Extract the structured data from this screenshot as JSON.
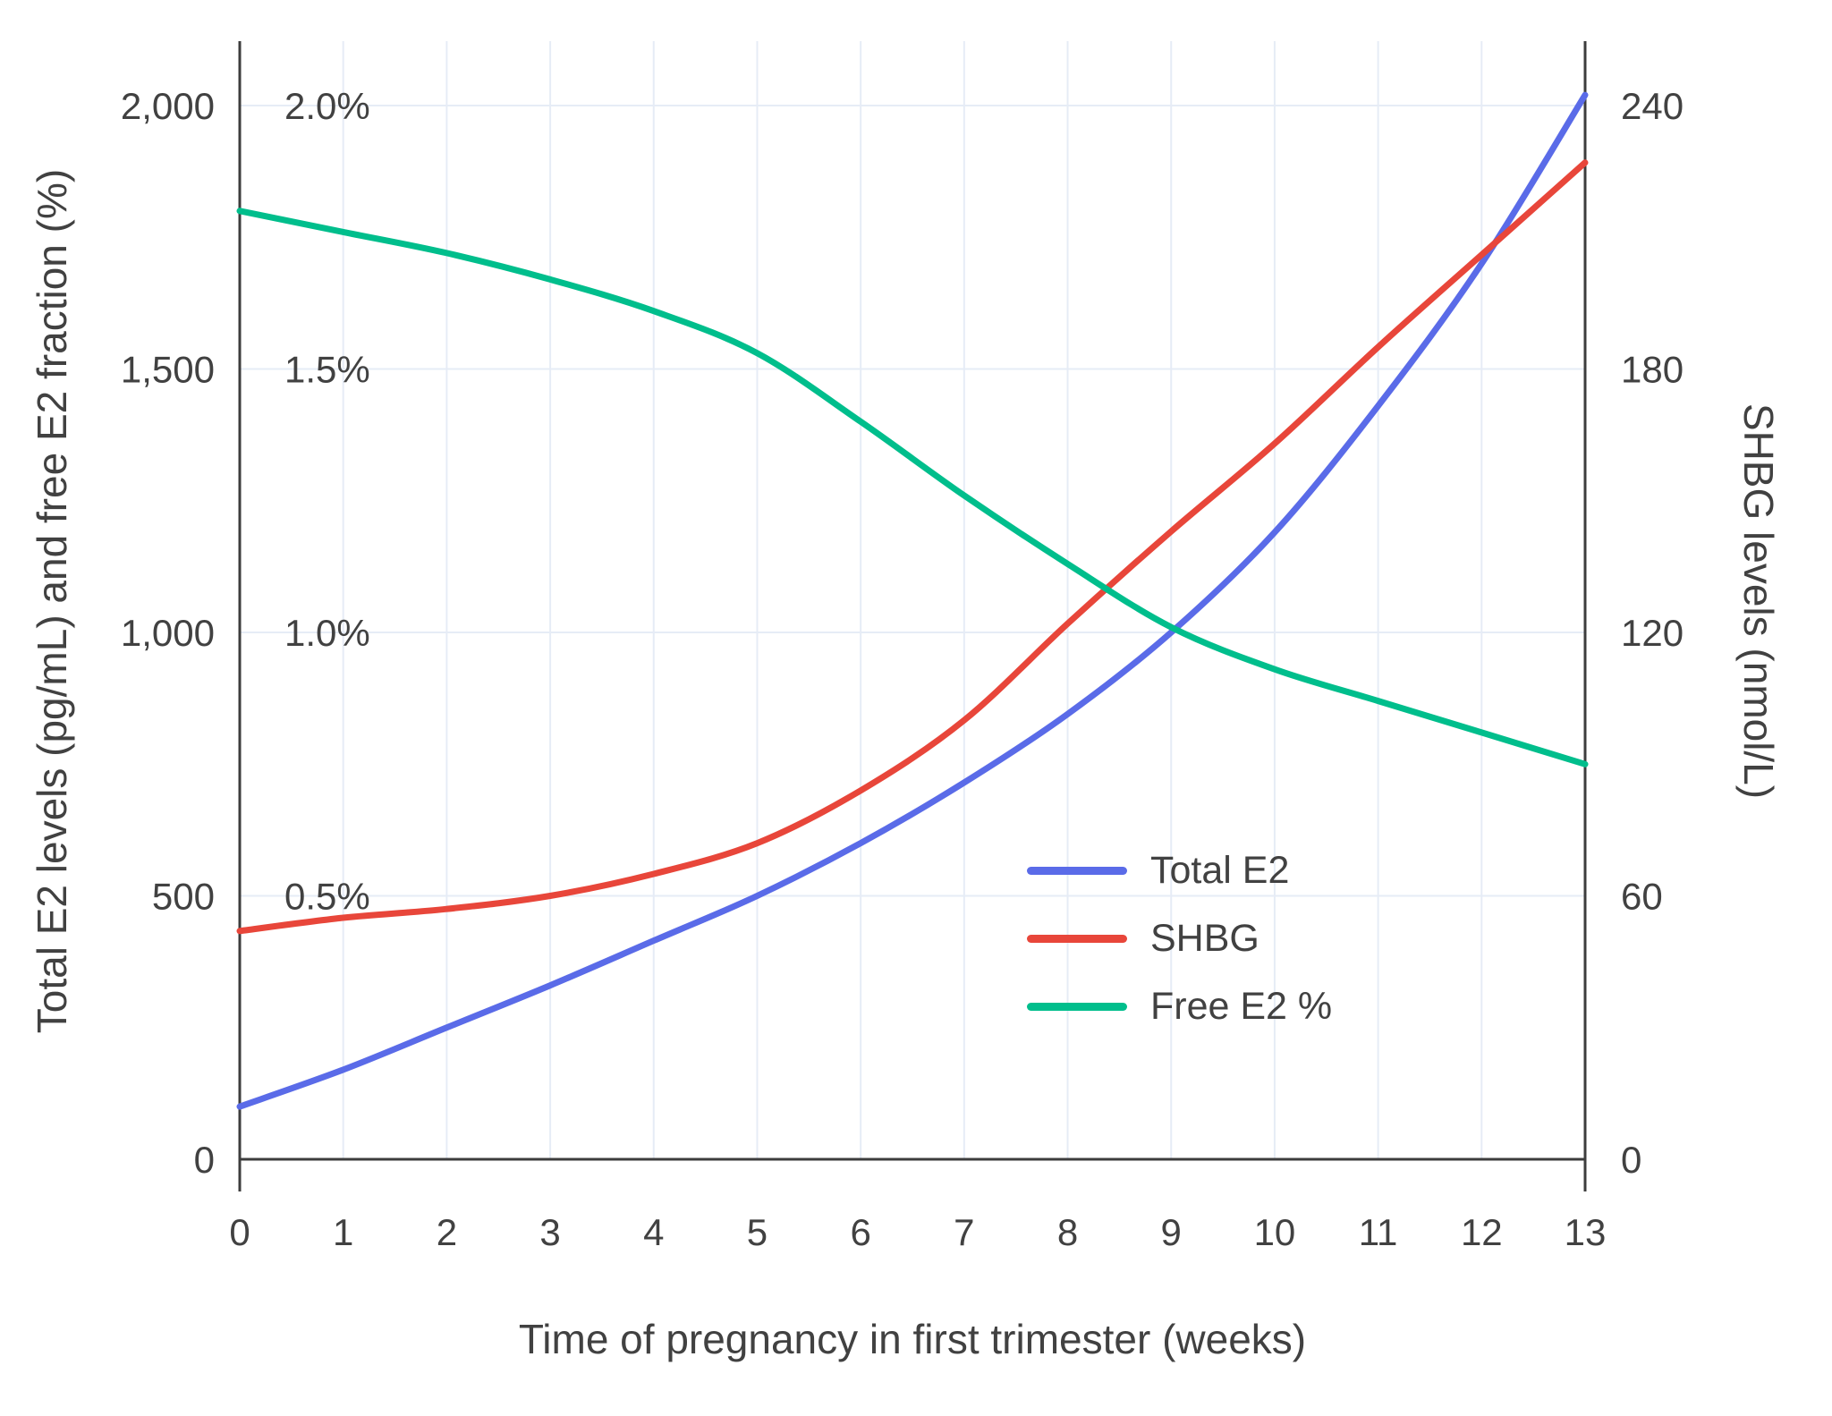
{
  "chart_data": {
    "type": "line",
    "xlabel": "Time of pregnancy in first trimester (weeks)",
    "ylabel_left": "Total E2 levels (pg/mL) and free E2 fraction (%)",
    "ylabel_right": "SHBG levels (nmol/L)",
    "x": [
      0,
      1,
      2,
      3,
      4,
      5,
      6,
      7,
      8,
      9,
      10,
      11,
      12,
      13
    ],
    "x_tick_labels": [
      "0",
      "1",
      "2",
      "3",
      "4",
      "5",
      "6",
      "7",
      "8",
      "9",
      "10",
      "11",
      "12",
      "13"
    ],
    "left_axis": {
      "range": [
        0,
        2000
      ],
      "ticks": [
        0,
        500,
        1000,
        1500,
        2000
      ],
      "tick_labels": [
        "0",
        "500",
        "1,000",
        "1,500",
        "2,000"
      ]
    },
    "percent_axis": {
      "range": [
        0,
        2.0
      ],
      "ticks": [
        0.5,
        1.0,
        1.5,
        2.0
      ],
      "tick_labels": [
        "0.5%",
        "1.0%",
        "1.5%",
        "2.0%"
      ]
    },
    "right_axis": {
      "range": [
        0,
        240
      ],
      "ticks": [
        0,
        60,
        120,
        180,
        240
      ],
      "tick_labels": [
        "0",
        "60",
        "120",
        "180",
        "240"
      ]
    },
    "grid": true,
    "legend_position": "inside-right",
    "series": [
      {
        "name": "Total E2",
        "axis": "left",
        "unit": "pg/mL",
        "color": "#5A6BE8",
        "values": [
          100,
          170,
          250,
          330,
          415,
          500,
          600,
          715,
          845,
          1000,
          1190,
          1430,
          1700,
          2020
        ]
      },
      {
        "name": "SHBG",
        "axis": "right",
        "unit": "nmol/L",
        "color": "#E8463A",
        "values": [
          52,
          55,
          57,
          60,
          65,
          72,
          84,
          100,
          122,
          143,
          163,
          185,
          206,
          227
        ]
      },
      {
        "name": "Free E2 %",
        "axis": "percent",
        "unit": "%",
        "color": "#00BE8C",
        "values": [
          1.8,
          1.76,
          1.72,
          1.67,
          1.61,
          1.53,
          1.4,
          1.26,
          1.13,
          1.01,
          0.93,
          0.87,
          0.81,
          0.75
        ]
      }
    ]
  },
  "colors": {
    "axis": "#3D3D3D",
    "grid": "#E6ECF6",
    "text": "#414141",
    "background": "#FFFFFF"
  }
}
